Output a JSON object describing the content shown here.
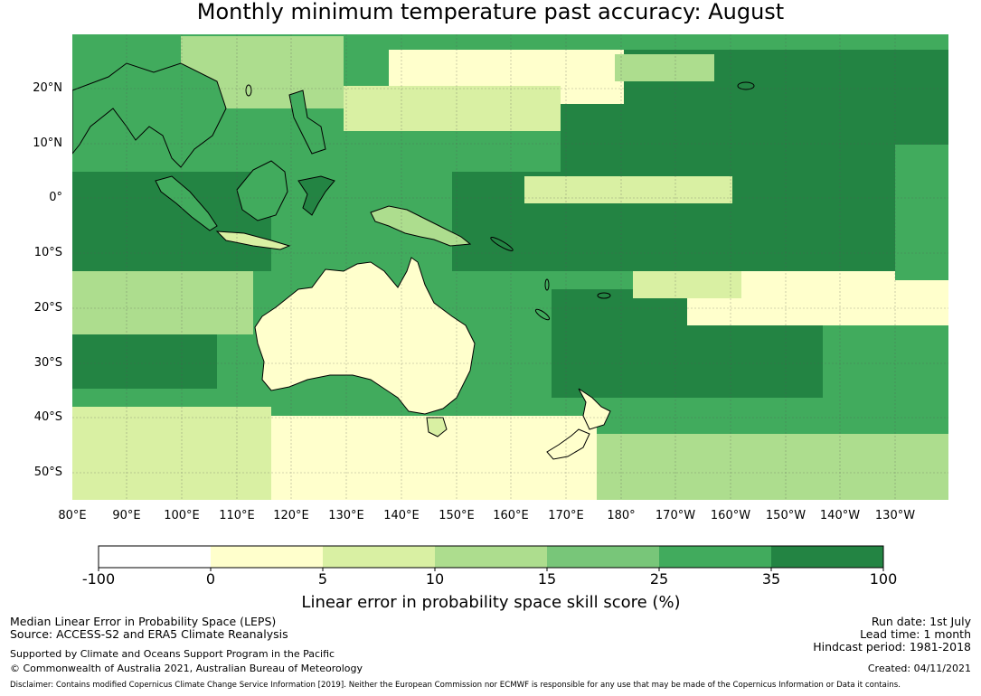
{
  "title": "Monthly minimum temperature past accuracy: August",
  "map": {
    "lat_labels": [
      "20°N",
      "10°N",
      "0°",
      "10°S",
      "20°S",
      "30°S",
      "40°S",
      "50°S"
    ],
    "lon_labels": [
      "80°E",
      "90°E",
      "100°E",
      "110°E",
      "120°E",
      "130°E",
      "140°E",
      "150°E",
      "160°E",
      "170°E",
      "180°",
      "170°W",
      "160°W",
      "150°W",
      "140°W",
      "130°W"
    ]
  },
  "colorbar": {
    "title": "Linear error in probability space skill score (%)",
    "ticks": [
      "-100",
      "0",
      "5",
      "10",
      "15",
      "25",
      "35",
      "100"
    ],
    "colors": [
      "#ffffff",
      "#ffffcc",
      "#d9f0a3",
      "#addd8e",
      "#78c679",
      "#41ab5d",
      "#238443"
    ]
  },
  "footer": {
    "line1": "Median Linear Error in Probability Space (LEPS)",
    "line2": "Source: ACCESS-S2 and ERA5 Climate Reanalysis",
    "line3": "Supported by Climate and Oceans Support Program in the Pacific",
    "line4": "© Commonwealth of Australia 2021, Australian Bureau of Meteorology",
    "run_date": "Run date: 1st July",
    "lead_time": "Lead time: 1 month",
    "hindcast": "Hindcast period: 1981-2018",
    "created": "Created: 04/11/2021",
    "disclaimer": "Disclaimer: Contains modified Copernicus Climate Change Service Information [2019]. Neither the European Commission nor ECMWF is responsible for any use that may be made of the Copernicus Information or Data it contains."
  }
}
